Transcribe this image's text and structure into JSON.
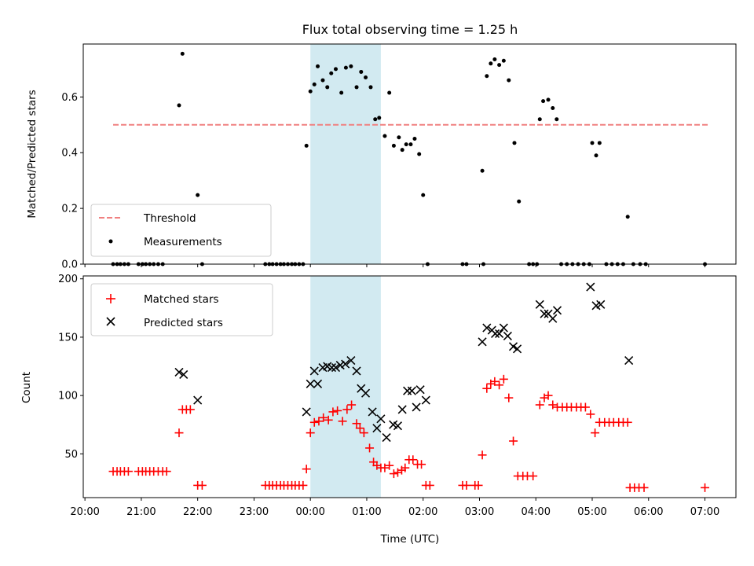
{
  "chart_data": {
    "type": "scatter",
    "title": "Flux total observing time = 1.25 h",
    "xlabel": "Time (UTC)",
    "x_unit": "hours relative to 00:00 UTC",
    "x_ticks": [
      {
        "value": -4,
        "label": "20:00"
      },
      {
        "value": -3,
        "label": "21:00"
      },
      {
        "value": -2,
        "label": "22:00"
      },
      {
        "value": -1,
        "label": "23:00"
      },
      {
        "value": 0,
        "label": "00:00"
      },
      {
        "value": 1,
        "label": "01:00"
      },
      {
        "value": 2,
        "label": "02:00"
      },
      {
        "value": 3,
        "label": "03:00"
      },
      {
        "value": 4,
        "label": "04:00"
      },
      {
        "value": 5,
        "label": "05:00"
      },
      {
        "value": 6,
        "label": "06:00"
      },
      {
        "value": 7,
        "label": "07:00"
      }
    ],
    "xlim": [
      -4.03,
      7.55
    ],
    "shaded_span": {
      "x0": 0,
      "x1": 1.25,
      "color": "#add8e6"
    },
    "panels": [
      {
        "name": "ratio",
        "ylabel": "Matched/Predicted stars",
        "ylim": [
          0,
          0.79
        ],
        "yticks": [
          0.0,
          0.2,
          0.4,
          0.6
        ],
        "tick_labels": [
          "0.0",
          "0.2",
          "0.4",
          "0.6"
        ],
        "legend_position": "lower-left",
        "threshold": {
          "name": "Threshold",
          "y": 0.5,
          "x_start": -3.5,
          "x_end": 7.05,
          "color": "#f08080"
        },
        "measurements": {
          "name": "Measurements",
          "color": "#000000",
          "points": [
            [
              -3.5,
              0
            ],
            [
              -3.43,
              0
            ],
            [
              -3.37,
              0
            ],
            [
              -3.3,
              0
            ],
            [
              -3.23,
              0
            ],
            [
              -3.05,
              0
            ],
            [
              -2.98,
              0
            ],
            [
              -2.92,
              0
            ],
            [
              -2.85,
              0
            ],
            [
              -2.78,
              0
            ],
            [
              -2.7,
              0
            ],
            [
              -2.62,
              0
            ],
            [
              -2.33,
              0.57
            ],
            [
              -2.27,
              0.755
            ],
            [
              -2.0,
              0.248
            ],
            [
              -1.92,
              0
            ],
            [
              -0.8,
              0
            ],
            [
              -0.73,
              0
            ],
            [
              -0.67,
              0
            ],
            [
              -0.6,
              0
            ],
            [
              -0.53,
              0
            ],
            [
              -0.47,
              0
            ],
            [
              -0.4,
              0
            ],
            [
              -0.33,
              0
            ],
            [
              -0.27,
              0
            ],
            [
              -0.2,
              0
            ],
            [
              -0.13,
              0
            ],
            [
              -0.07,
              0.425
            ],
            [
              0.0,
              0.62
            ],
            [
              0.07,
              0.645
            ],
            [
              0.13,
              0.71
            ],
            [
              0.22,
              0.66
            ],
            [
              0.3,
              0.635
            ],
            [
              0.37,
              0.685
            ],
            [
              0.45,
              0.7
            ],
            [
              0.55,
              0.615
            ],
            [
              0.63,
              0.705
            ],
            [
              0.72,
              0.71
            ],
            [
              0.82,
              0.635
            ],
            [
              0.9,
              0.69
            ],
            [
              0.98,
              0.67
            ],
            [
              1.07,
              0.635
            ],
            [
              1.15,
              0.52
            ],
            [
              1.22,
              0.525
            ],
            [
              1.32,
              0.46
            ],
            [
              1.4,
              0.615
            ],
            [
              1.48,
              0.425
            ],
            [
              1.57,
              0.455
            ],
            [
              1.63,
              0.41
            ],
            [
              1.7,
              0.43
            ],
            [
              1.78,
              0.43
            ],
            [
              1.85,
              0.45
            ],
            [
              1.93,
              0.395
            ],
            [
              2.0,
              0.248
            ],
            [
              2.08,
              0
            ],
            [
              2.7,
              0
            ],
            [
              2.77,
              0
            ],
            [
              3.05,
              0.335
            ],
            [
              3.07,
              0
            ],
            [
              3.13,
              0.675
            ],
            [
              3.2,
              0.72
            ],
            [
              3.27,
              0.735
            ],
            [
              3.35,
              0.715
            ],
            [
              3.43,
              0.73
            ],
            [
              3.52,
              0.66
            ],
            [
              3.62,
              0.435
            ],
            [
              3.7,
              0.225
            ],
            [
              3.88,
              0
            ],
            [
              3.95,
              0
            ],
            [
              4.02,
              0
            ],
            [
              4.07,
              0.52
            ],
            [
              4.13,
              0.585
            ],
            [
              4.22,
              0.59
            ],
            [
              4.3,
              0.56
            ],
            [
              4.37,
              0.52
            ],
            [
              4.45,
              0
            ],
            [
              4.55,
              0
            ],
            [
              4.65,
              0
            ],
            [
              4.75,
              0
            ],
            [
              4.85,
              0
            ],
            [
              4.95,
              0
            ],
            [
              5.0,
              0.435
            ],
            [
              5.07,
              0.39
            ],
            [
              5.13,
              0.435
            ],
            [
              5.25,
              0
            ],
            [
              5.35,
              0
            ],
            [
              5.45,
              0
            ],
            [
              5.55,
              0
            ],
            [
              5.63,
              0.17
            ],
            [
              5.73,
              0
            ],
            [
              5.85,
              0
            ],
            [
              5.95,
              0
            ],
            [
              7.0,
              0
            ]
          ]
        }
      },
      {
        "name": "counts",
        "ylabel": "Count",
        "ylim": [
          12.5,
          202.5
        ],
        "yticks": [
          50,
          100,
          150,
          200
        ],
        "tick_labels": [
          "50",
          "100",
          "150",
          "200"
        ],
        "legend_position": "upper-left",
        "series": [
          {
            "name": "Matched stars",
            "marker": "plus",
            "color": "#ff0000",
            "points": [
              [
                -3.5,
                35
              ],
              [
                -3.43,
                35
              ],
              [
                -3.37,
                35
              ],
              [
                -3.3,
                35
              ],
              [
                -3.23,
                35
              ],
              [
                -3.05,
                35
              ],
              [
                -2.98,
                35
              ],
              [
                -2.92,
                35
              ],
              [
                -2.85,
                35
              ],
              [
                -2.78,
                35
              ],
              [
                -2.7,
                35
              ],
              [
                -2.62,
                35
              ],
              [
                -2.55,
                35
              ],
              [
                -2.33,
                68
              ],
              [
                -2.27,
                88
              ],
              [
                -2.2,
                88
              ],
              [
                -2.13,
                88
              ],
              [
                -2.0,
                23
              ],
              [
                -1.92,
                23
              ],
              [
                -0.8,
                23
              ],
              [
                -0.73,
                23
              ],
              [
                -0.67,
                23
              ],
              [
                -0.6,
                23
              ],
              [
                -0.53,
                23
              ],
              [
                -0.47,
                23
              ],
              [
                -0.4,
                23
              ],
              [
                -0.33,
                23
              ],
              [
                -0.27,
                23
              ],
              [
                -0.2,
                23
              ],
              [
                -0.13,
                23
              ],
              [
                -0.07,
                37
              ],
              [
                0.0,
                68
              ],
              [
                0.07,
                77
              ],
              [
                0.15,
                78
              ],
              [
                0.23,
                81
              ],
              [
                0.32,
                79
              ],
              [
                0.4,
                86
              ],
              [
                0.48,
                87
              ],
              [
                0.57,
                78
              ],
              [
                0.65,
                88
              ],
              [
                0.73,
                92
              ],
              [
                0.82,
                76
              ],
              [
                0.88,
                72
              ],
              [
                0.95,
                68
              ],
              [
                1.05,
                55
              ],
              [
                1.12,
                43
              ],
              [
                1.18,
                40
              ],
              [
                1.25,
                38
              ],
              [
                1.32,
                38
              ],
              [
                1.4,
                40
              ],
              [
                1.48,
                33
              ],
              [
                1.55,
                34
              ],
              [
                1.62,
                36
              ],
              [
                1.68,
                38
              ],
              [
                1.75,
                45
              ],
              [
                1.82,
                45
              ],
              [
                1.9,
                41
              ],
              [
                1.97,
                41
              ],
              [
                2.05,
                23
              ],
              [
                2.12,
                23
              ],
              [
                2.7,
                23
              ],
              [
                2.77,
                23
              ],
              [
                2.92,
                23
              ],
              [
                2.98,
                23
              ],
              [
                3.05,
                49
              ],
              [
                3.13,
                106
              ],
              [
                3.2,
                110
              ],
              [
                3.27,
                112
              ],
              [
                3.35,
                109
              ],
              [
                3.43,
                114
              ],
              [
                3.52,
                98
              ],
              [
                3.6,
                61
              ],
              [
                3.68,
                31
              ],
              [
                3.77,
                31
              ],
              [
                3.85,
                31
              ],
              [
                3.95,
                31
              ],
              [
                4.07,
                92
              ],
              [
                4.15,
                98
              ],
              [
                4.22,
                100
              ],
              [
                4.3,
                92
              ],
              [
                4.38,
                90
              ],
              [
                4.47,
                90
              ],
              [
                4.55,
                90
              ],
              [
                4.63,
                90
              ],
              [
                4.72,
                90
              ],
              [
                4.8,
                90
              ],
              [
                4.88,
                90
              ],
              [
                4.97,
                84
              ],
              [
                5.05,
                68
              ],
              [
                5.13,
                77
              ],
              [
                5.22,
                77
              ],
              [
                5.3,
                77
              ],
              [
                5.38,
                77
              ],
              [
                5.47,
                77
              ],
              [
                5.55,
                77
              ],
              [
                5.63,
                77
              ],
              [
                5.67,
                21
              ],
              [
                5.75,
                21
              ],
              [
                5.83,
                21
              ],
              [
                5.92,
                21
              ],
              [
                7.0,
                21
              ]
            ]
          },
          {
            "name": "Predicted stars",
            "marker": "x",
            "color": "#000000",
            "points": [
              [
                -2.33,
                120
              ],
              [
                -2.25,
                118
              ],
              [
                -2.0,
                96
              ],
              [
                -0.07,
                86
              ],
              [
                0.0,
                110
              ],
              [
                0.07,
                121
              ],
              [
                0.13,
                110
              ],
              [
                0.22,
                124
              ],
              [
                0.3,
                125
              ],
              [
                0.38,
                124
              ],
              [
                0.45,
                124
              ],
              [
                0.53,
                126
              ],
              [
                0.62,
                127
              ],
              [
                0.72,
                130
              ],
              [
                0.82,
                121
              ],
              [
                0.9,
                106
              ],
              [
                0.98,
                102
              ],
              [
                1.1,
                86
              ],
              [
                1.18,
                72
              ],
              [
                1.25,
                80
              ],
              [
                1.35,
                64
              ],
              [
                1.47,
                75
              ],
              [
                1.55,
                74
              ],
              [
                1.63,
                88
              ],
              [
                1.72,
                104
              ],
              [
                1.8,
                104
              ],
              [
                1.88,
                90
              ],
              [
                1.95,
                105
              ],
              [
                2.05,
                96
              ],
              [
                3.05,
                146
              ],
              [
                3.13,
                158
              ],
              [
                3.22,
                156
              ],
              [
                3.28,
                153
              ],
              [
                3.35,
                153
              ],
              [
                3.43,
                158
              ],
              [
                3.5,
                151
              ],
              [
                3.6,
                142
              ],
              [
                3.67,
                140
              ],
              [
                4.07,
                178
              ],
              [
                4.15,
                170
              ],
              [
                4.22,
                170
              ],
              [
                4.3,
                166
              ],
              [
                4.38,
                173
              ],
              [
                4.97,
                193
              ],
              [
                5.07,
                177
              ],
              [
                5.15,
                178
              ],
              [
                5.65,
                130
              ]
            ]
          }
        ]
      }
    ]
  }
}
